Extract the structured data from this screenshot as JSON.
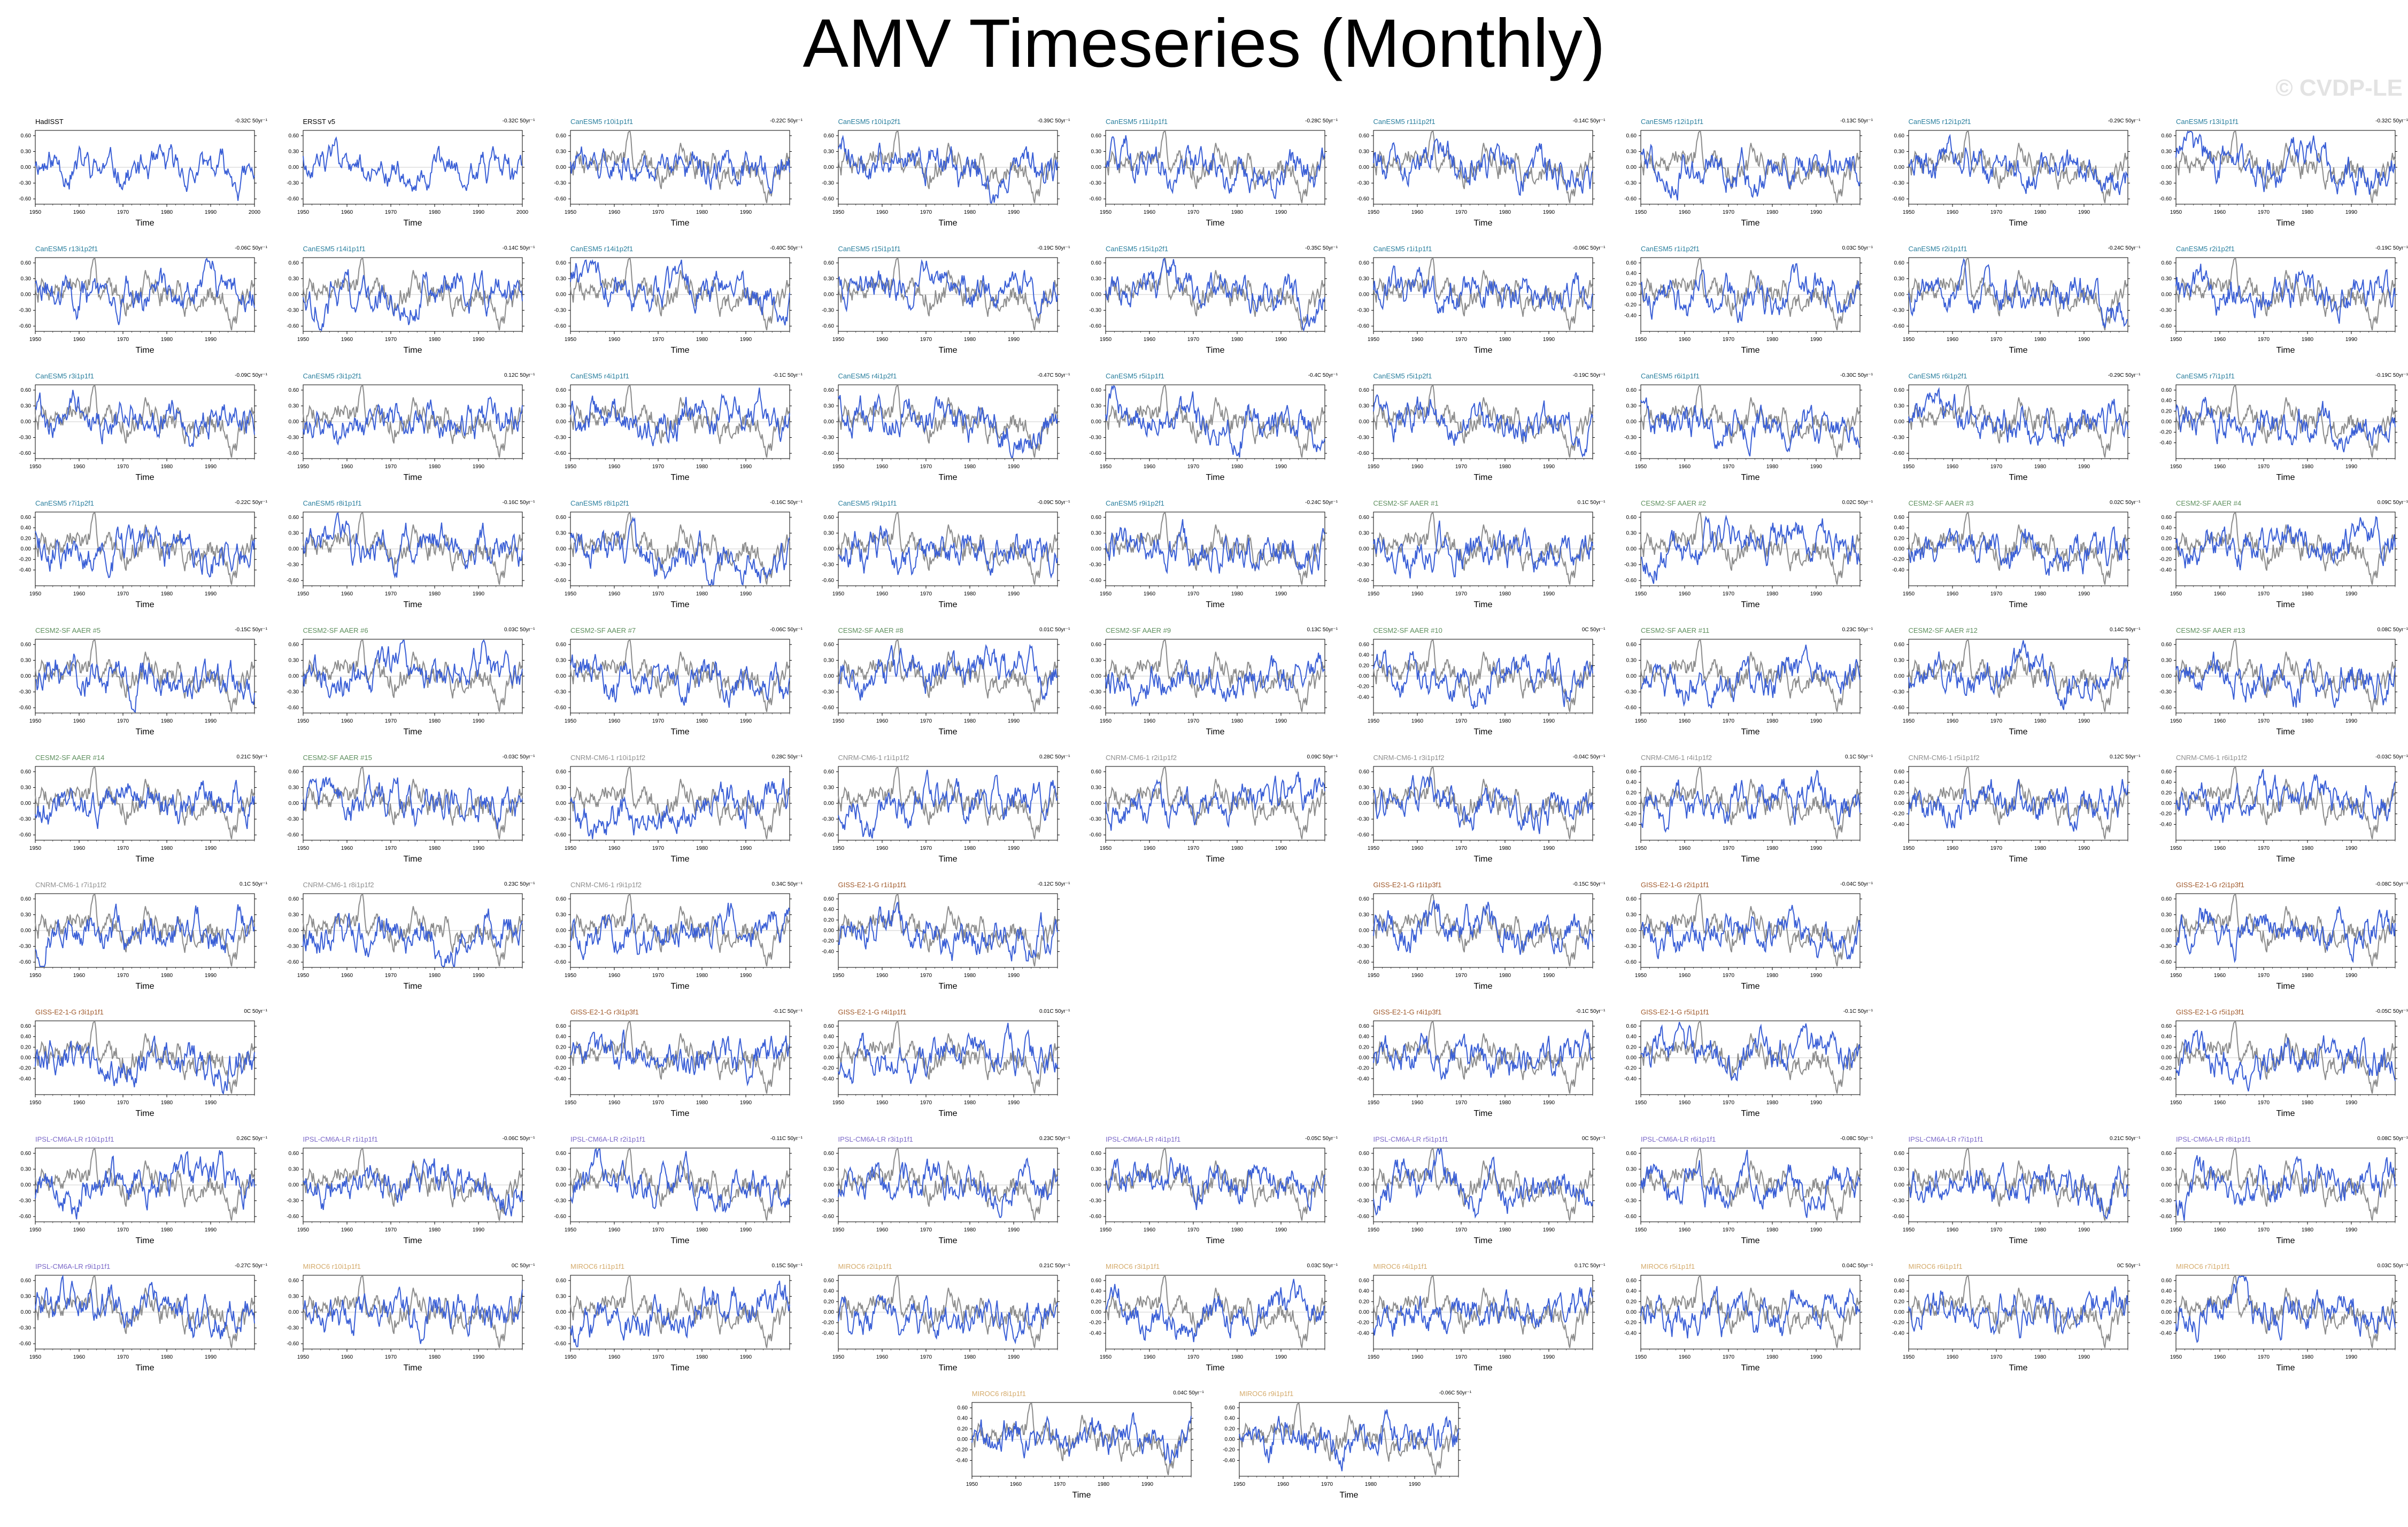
{
  "title": "AMV Timeseries (Monthly)",
  "watermark": "© CVDP-LE",
  "colors": {
    "model_line": "#3a5fd6",
    "obs_line": "#8c8c8c",
    "obs_title": "#000000",
    "CanESM5": "#2a7f9e",
    "CESM2": "#5e8f5e",
    "CNRM": "#8f8f8f",
    "GISS": "#a05a2c",
    "IPSL": "#7b68c8",
    "MIROC": "#d4aa6a"
  },
  "chart_data": {
    "type": "line",
    "xlabel": "Time",
    "x_range": [
      1950,
      2000
    ],
    "y_ticks_default": [
      "0.60",
      "0.30",
      "0.00",
      "-0.30",
      "-0.60"
    ],
    "y_ticks_alt": [
      "0.60",
      "0.40",
      "0.20",
      "0.00",
      "-0.20",
      "-0.40"
    ],
    "x_ticks": [
      "1950",
      "1960",
      "1970",
      "1980",
      "1990"
    ],
    "x_ticks_obs": [
      "1950",
      "1960",
      "1970",
      "1980",
      "1990",
      "2000"
    ],
    "panels": [
      {
        "row": 0,
        "col": 0,
        "title": "HadISST",
        "trend": "-0.32C 50yr⁻¹",
        "group": "obs"
      },
      {
        "row": 0,
        "col": 1,
        "title": "ERSST v5",
        "trend": "-0.32C 50yr⁻¹",
        "group": "obs"
      },
      {
        "row": 0,
        "col": 2,
        "title": "CanESM5 r10i1p1f1",
        "trend": "-0.22C 50yr⁻¹",
        "group": "CanESM5"
      },
      {
        "row": 0,
        "col": 3,
        "title": "CanESM5 r10i1p2f1",
        "trend": "-0.39C 50yr⁻¹",
        "group": "CanESM5"
      },
      {
        "row": 0,
        "col": 4,
        "title": "CanESM5 r11i1p1f1",
        "trend": "-0.28C 50yr⁻¹",
        "group": "CanESM5"
      },
      {
        "row": 0,
        "col": 5,
        "title": "CanESM5 r11i1p2f1",
        "trend": "-0.14C 50yr⁻¹",
        "group": "CanESM5"
      },
      {
        "row": 0,
        "col": 6,
        "title": "CanESM5 r12i1p1f1",
        "trend": "-0.13C 50yr⁻¹",
        "group": "CanESM5"
      },
      {
        "row": 0,
        "col": 7,
        "title": "CanESM5 r12i1p2f1",
        "trend": "-0.29C 50yr⁻¹",
        "group": "CanESM5"
      },
      {
        "row": 0,
        "col": 8,
        "title": "CanESM5 r13i1p1f1",
        "trend": "-0.32C 50yr⁻¹",
        "group": "CanESM5"
      },
      {
        "row": 1,
        "col": 0,
        "title": "CanESM5 r13i1p2f1",
        "trend": "-0.06C 50yr⁻¹",
        "group": "CanESM5"
      },
      {
        "row": 1,
        "col": 1,
        "title": "CanESM5 r14i1p1f1",
        "trend": "-0.14C 50yr⁻¹",
        "group": "CanESM5"
      },
      {
        "row": 1,
        "col": 2,
        "title": "CanESM5 r14i1p2f1",
        "trend": "-0.40C 50yr⁻¹",
        "group": "CanESM5"
      },
      {
        "row": 1,
        "col": 3,
        "title": "CanESM5 r15i1p1f1",
        "trend": "-0.19C 50yr⁻¹",
        "group": "CanESM5"
      },
      {
        "row": 1,
        "col": 4,
        "title": "CanESM5 r15i1p2f1",
        "trend": "-0.35C 50yr⁻¹",
        "group": "CanESM5"
      },
      {
        "row": 1,
        "col": 5,
        "title": "CanESM5 r1i1p1f1",
        "trend": "-0.06C 50yr⁻¹",
        "group": "CanESM5"
      },
      {
        "row": 1,
        "col": 6,
        "title": "CanESM5 r1i1p2f1",
        "trend": "0.03C 50yr⁻¹",
        "group": "CanESM5",
        "alt": true
      },
      {
        "row": 1,
        "col": 7,
        "title": "CanESM5 r2i1p1f1",
        "trend": "-0.24C 50yr⁻¹",
        "group": "CanESM5"
      },
      {
        "row": 1,
        "col": 8,
        "title": "CanESM5 r2i1p2f1",
        "trend": "-0.19C 50yr⁻¹",
        "group": "CanESM5"
      },
      {
        "row": 2,
        "col": 0,
        "title": "CanESM5 r3i1p1f1",
        "trend": "-0.09C 50yr⁻¹",
        "group": "CanESM5"
      },
      {
        "row": 2,
        "col": 1,
        "title": "CanESM5 r3i1p2f1",
        "trend": "0.12C 50yr⁻¹",
        "group": "CanESM5"
      },
      {
        "row": 2,
        "col": 2,
        "title": "CanESM5 r4i1p1f1",
        "trend": "-0.1C 50yr⁻¹",
        "group": "CanESM5"
      },
      {
        "row": 2,
        "col": 3,
        "title": "CanESM5 r4i1p2f1",
        "trend": "-0.47C 50yr⁻¹",
        "group": "CanESM5"
      },
      {
        "row": 2,
        "col": 4,
        "title": "CanESM5 r5i1p1f1",
        "trend": "-0.4C 50yr⁻¹",
        "group": "CanESM5"
      },
      {
        "row": 2,
        "col": 5,
        "title": "CanESM5 r5i1p2f1",
        "trend": "-0.19C 50yr⁻¹",
        "group": "CanESM5"
      },
      {
        "row": 2,
        "col": 6,
        "title": "CanESM5 r6i1p1f1",
        "trend": "-0.30C 50yr⁻¹",
        "group": "CanESM5"
      },
      {
        "row": 2,
        "col": 7,
        "title": "CanESM5 r6i1p2f1",
        "trend": "-0.29C 50yr⁻¹",
        "group": "CanESM5"
      },
      {
        "row": 2,
        "col": 8,
        "title": "CanESM5 r7i1p1f1",
        "trend": "-0.19C 50yr⁻¹",
        "group": "CanESM5",
        "alt": true
      },
      {
        "row": 3,
        "col": 0,
        "title": "CanESM5 r7i1p2f1",
        "trend": "-0.22C 50yr⁻¹",
        "group": "CanESM5",
        "alt": true
      },
      {
        "row": 3,
        "col": 1,
        "title": "CanESM5 r8i1p1f1",
        "trend": "-0.16C 50yr⁻¹",
        "group": "CanESM5"
      },
      {
        "row": 3,
        "col": 2,
        "title": "CanESM5 r8i1p2f1",
        "trend": "-0.16C 50yr⁻¹",
        "group": "CanESM5"
      },
      {
        "row": 3,
        "col": 3,
        "title": "CanESM5 r9i1p1f1",
        "trend": "-0.09C 50yr⁻¹",
        "group": "CanESM5"
      },
      {
        "row": 3,
        "col": 4,
        "title": "CanESM5 r9i1p2f1",
        "trend": "-0.24C 50yr⁻¹",
        "group": "CanESM5"
      },
      {
        "row": 3,
        "col": 5,
        "title": "CESM2-SF AAER #1",
        "trend": "0.1C 50yr⁻¹",
        "group": "CESM2"
      },
      {
        "row": 3,
        "col": 6,
        "title": "CESM2-SF AAER #2",
        "trend": "0.02C 50yr⁻¹",
        "group": "CESM2"
      },
      {
        "row": 3,
        "col": 7,
        "title": "CESM2-SF AAER #3",
        "trend": "0.02C 50yr⁻¹",
        "group": "CESM2",
        "alt": true
      },
      {
        "row": 3,
        "col": 8,
        "title": "CESM2-SF AAER #4",
        "trend": "0.09C 50yr⁻¹",
        "group": "CESM2",
        "alt": true
      },
      {
        "row": 4,
        "col": 0,
        "title": "CESM2-SF AAER #5",
        "trend": "-0.15C 50yr⁻¹",
        "group": "CESM2"
      },
      {
        "row": 4,
        "col": 1,
        "title": "CESM2-SF AAER #6",
        "trend": "0.03C 50yr⁻¹",
        "group": "CESM2"
      },
      {
        "row": 4,
        "col": 2,
        "title": "CESM2-SF AAER #7",
        "trend": "-0.06C 50yr⁻¹",
        "group": "CESM2"
      },
      {
        "row": 4,
        "col": 3,
        "title": "CESM2-SF AAER #8",
        "trend": "0.01C 50yr⁻¹",
        "group": "CESM2"
      },
      {
        "row": 4,
        "col": 4,
        "title": "CESM2-SF AAER #9",
        "trend": "0.13C 50yr⁻¹",
        "group": "CESM2"
      },
      {
        "row": 4,
        "col": 5,
        "title": "CESM2-SF AAER #10",
        "trend": "0C 50yr⁻¹",
        "group": "CESM2",
        "alt": true
      },
      {
        "row": 4,
        "col": 6,
        "title": "CESM2-SF AAER #11",
        "trend": "0.23C 50yr⁻¹",
        "group": "CESM2"
      },
      {
        "row": 4,
        "col": 7,
        "title": "CESM2-SF AAER #12",
        "trend": "0.14C 50yr⁻¹",
        "group": "CESM2"
      },
      {
        "row": 4,
        "col": 8,
        "title": "CESM2-SF AAER #13",
        "trend": "0.08C 50yr⁻¹",
        "group": "CESM2"
      },
      {
        "row": 5,
        "col": 0,
        "title": "CESM2-SF AAER #14",
        "trend": "0.21C 50yr⁻¹",
        "group": "CESM2"
      },
      {
        "row": 5,
        "col": 1,
        "title": "CESM2-SF AAER #15",
        "trend": "-0.03C 50yr⁻¹",
        "group": "CESM2"
      },
      {
        "row": 5,
        "col": 2,
        "title": "CNRM-CM6-1 r10i1p1f2",
        "trend": "0.28C 50yr⁻¹",
        "group": "CNRM"
      },
      {
        "row": 5,
        "col": 3,
        "title": "CNRM-CM6-1 r1i1p1f2",
        "trend": "0.28C 50yr⁻¹",
        "group": "CNRM"
      },
      {
        "row": 5,
        "col": 4,
        "title": "CNRM-CM6-1 r2i1p1f2",
        "trend": "0.09C 50yr⁻¹",
        "group": "CNRM"
      },
      {
        "row": 5,
        "col": 5,
        "title": "CNRM-CM6-1 r3i1p1f2",
        "trend": "-0.04C 50yr⁻¹",
        "group": "CNRM"
      },
      {
        "row": 5,
        "col": 6,
        "title": "CNRM-CM6-1 r4i1p1f2",
        "trend": "0.1C 50yr⁻¹",
        "group": "CNRM",
        "alt": true
      },
      {
        "row": 5,
        "col": 7,
        "title": "CNRM-CM6-1 r5i1p1f2",
        "trend": "0.12C 50yr⁻¹",
        "group": "CNRM",
        "alt": true
      },
      {
        "row": 5,
        "col": 8,
        "title": "CNRM-CM6-1 r6i1p1f2",
        "trend": "-0.03C 50yr⁻¹",
        "group": "CNRM",
        "alt": true
      },
      {
        "row": 6,
        "col": 0,
        "title": "CNRM-CM6-1 r7i1p1f2",
        "trend": "0.1C 50yr⁻¹",
        "group": "CNRM"
      },
      {
        "row": 6,
        "col": 1,
        "title": "CNRM-CM6-1 r8i1p1f2",
        "trend": "0.23C 50yr⁻¹",
        "group": "CNRM"
      },
      {
        "row": 6,
        "col": 2,
        "title": "CNRM-CM6-1 r9i1p1f2",
        "trend": "0.34C 50yr⁻¹",
        "group": "CNRM"
      },
      {
        "row": 6,
        "col": 3,
        "title": "GISS-E2-1-G r1i1p1f1",
        "trend": "-0.12C 50yr⁻¹",
        "group": "GISS",
        "alt": true
      },
      {
        "row": 6,
        "col": 5,
        "title": "GISS-E2-1-G r1i1p3f1",
        "trend": "-0.15C 50yr⁻¹",
        "group": "GISS"
      },
      {
        "row": 6,
        "col": 6,
        "title": "GISS-E2-1-G r2i1p1f1",
        "trend": "-0.04C 50yr⁻¹",
        "group": "GISS"
      },
      {
        "row": 6,
        "col": 8,
        "title": "GISS-E2-1-G r2i1p3f1",
        "trend": "-0.08C 50yr⁻¹",
        "group": "GISS"
      },
      {
        "row": 7,
        "col": 0,
        "title": "GISS-E2-1-G r3i1p1f1",
        "trend": "0C 50yr⁻¹",
        "group": "GISS",
        "alt": true
      },
      {
        "row": 7,
        "col": 2,
        "title": "GISS-E2-1-G r3i1p3f1",
        "trend": "-0.1C 50yr⁻¹",
        "group": "GISS",
        "alt": true
      },
      {
        "row": 7,
        "col": 3,
        "title": "GISS-E2-1-G r4i1p1f1",
        "trend": "0.01C 50yr⁻¹",
        "group": "GISS",
        "alt": true
      },
      {
        "row": 7,
        "col": 5,
        "title": "GISS-E2-1-G r4i1p3f1",
        "trend": "-0.1C 50yr⁻¹",
        "group": "GISS",
        "alt": true
      },
      {
        "row": 7,
        "col": 6,
        "title": "GISS-E2-1-G r5i1p1f1",
        "trend": "-0.1C 50yr⁻¹",
        "group": "GISS",
        "alt": true
      },
      {
        "row": 7,
        "col": 8,
        "title": "GISS-E2-1-G r5i1p3f1",
        "trend": "-0.05C 50yr⁻¹",
        "group": "GISS",
        "alt": true
      },
      {
        "row": 8,
        "col": 0,
        "title": "IPSL-CM6A-LR r10i1p1f1",
        "trend": "0.26C 50yr⁻¹",
        "group": "IPSL"
      },
      {
        "row": 8,
        "col": 1,
        "title": "IPSL-CM6A-LR r1i1p1f1",
        "trend": "-0.06C 50yr⁻¹",
        "group": "IPSL"
      },
      {
        "row": 8,
        "col": 2,
        "title": "IPSL-CM6A-LR r2i1p1f1",
        "trend": "-0.11C 50yr⁻¹",
        "group": "IPSL"
      },
      {
        "row": 8,
        "col": 3,
        "title": "IPSL-CM6A-LR r3i1p1f1",
        "trend": "0.23C 50yr⁻¹",
        "group": "IPSL"
      },
      {
        "row": 8,
        "col": 4,
        "title": "IPSL-CM6A-LR r4i1p1f1",
        "trend": "-0.05C 50yr⁻¹",
        "group": "IPSL"
      },
      {
        "row": 8,
        "col": 5,
        "title": "IPSL-CM6A-LR r5i1p1f1",
        "trend": "0C 50yr⁻¹",
        "group": "IPSL"
      },
      {
        "row": 8,
        "col": 6,
        "title": "IPSL-CM6A-LR r6i1p1f1",
        "trend": "-0.08C 50yr⁻¹",
        "group": "IPSL"
      },
      {
        "row": 8,
        "col": 7,
        "title": "IPSL-CM6A-LR r7i1p1f1",
        "trend": "0.21C 50yr⁻¹",
        "group": "IPSL"
      },
      {
        "row": 8,
        "col": 8,
        "title": "IPSL-CM6A-LR r8i1p1f1",
        "trend": "0.08C 50yr⁻¹",
        "group": "IPSL"
      },
      {
        "row": 9,
        "col": 0,
        "title": "IPSL-CM6A-LR r9i1p1f1",
        "trend": "-0.27C 50yr⁻¹",
        "group": "IPSL"
      },
      {
        "row": 9,
        "col": 1,
        "title": "MIROC6 r10i1p1f1",
        "trend": "0C 50yr⁻¹",
        "group": "MIROC"
      },
      {
        "row": 9,
        "col": 2,
        "title": "MIROC6 r1i1p1f1",
        "trend": "0.15C 50yr⁻¹",
        "group": "MIROC"
      },
      {
        "row": 9,
        "col": 3,
        "title": "MIROC6 r2i1p1f1",
        "trend": "0.21C 50yr⁻¹",
        "group": "MIROC",
        "alt": true
      },
      {
        "row": 9,
        "col": 4,
        "title": "MIROC6 r3i1p1f1",
        "trend": "0.03C 50yr⁻¹",
        "group": "MIROC",
        "alt": true
      },
      {
        "row": 9,
        "col": 5,
        "title": "MIROC6 r4i1p1f1",
        "trend": "0.17C 50yr⁻¹",
        "group": "MIROC",
        "alt": true
      },
      {
        "row": 9,
        "col": 6,
        "title": "MIROC6 r5i1p1f1",
        "trend": "0.04C 50yr⁻¹",
        "group": "MIROC",
        "alt": true
      },
      {
        "row": 9,
        "col": 7,
        "title": "MIROC6 r6i1p1f1",
        "trend": "0C 50yr⁻¹",
        "group": "MIROC",
        "alt": true
      },
      {
        "row": 9,
        "col": 8,
        "title": "MIROC6 r7i1p1f1",
        "trend": "0.03C 50yr⁻¹",
        "group": "MIROC",
        "alt": true
      },
      {
        "row": 10,
        "col": 3.5,
        "title": "MIROC6 r8i1p1f1",
        "trend": "0.04C 50yr⁻¹",
        "group": "MIROC",
        "alt": true
      },
      {
        "row": 10,
        "col": 4.5,
        "title": "MIROC6 r9i1p1f1",
        "trend": "-0.06C 50yr⁻¹",
        "group": "MIROC",
        "alt": true
      }
    ]
  }
}
